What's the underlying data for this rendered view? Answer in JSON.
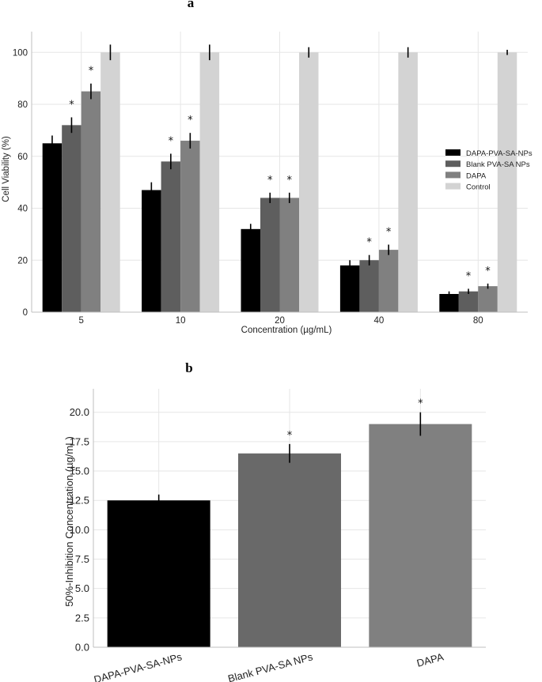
{
  "chart_data": [
    {
      "panel": "a",
      "type": "bar",
      "xlabel": "Concentration (µg/mL)",
      "ylabel": "Cell Viability (%)",
      "ylim": [
        0,
        108
      ],
      "yticks": [
        0,
        20,
        40,
        60,
        80,
        100
      ],
      "categories": [
        "5",
        "10",
        "20",
        "40",
        "80"
      ],
      "legend_position": "center-right",
      "series": [
        {
          "name": "DAPA-PVA-SA-NPs",
          "color": "#000000",
          "values": [
            65,
            47,
            32,
            18,
            7
          ],
          "errors": [
            3,
            3,
            2,
            2,
            1
          ],
          "significance": [
            "",
            "",
            "",
            "",
            ""
          ]
        },
        {
          "name": "Blank PVA-SA NPs",
          "color": "#5e5e5e",
          "values": [
            72,
            58,
            44,
            20,
            8
          ],
          "errors": [
            3,
            3,
            2,
            2,
            1
          ],
          "significance": [
            "*",
            "*",
            "*",
            "*",
            "*"
          ]
        },
        {
          "name": "DAPA",
          "color": "#808080",
          "values": [
            85,
            66,
            44,
            24,
            10
          ],
          "errors": [
            3,
            3,
            2,
            2,
            1
          ],
          "significance": [
            "*",
            "*",
            "*",
            "*",
            "*"
          ]
        },
        {
          "name": "Control",
          "color": "#d3d3d3",
          "values": [
            100,
            100,
            100,
            100,
            100
          ],
          "errors": [
            3,
            3,
            2,
            2,
            1
          ],
          "significance": [
            "",
            "",
            "",
            "",
            ""
          ]
        }
      ]
    },
    {
      "panel": "b",
      "type": "bar",
      "xlabel": "",
      "ylabel": "50%-Inhibition Concentration (µg/mL)",
      "ylim": [
        0,
        22
      ],
      "yticks": [
        "0.0",
        "2.5",
        "5.0",
        "7.5",
        "10.0",
        "12.5",
        "15.0",
        "17.5",
        "20.0"
      ],
      "categories": [
        "DAPA-PVA-SA-NPs",
        "Blank PVA-SA NPs",
        "DAPA"
      ],
      "colors": [
        "#000000",
        "#696969",
        "#808080"
      ],
      "values": [
        12.5,
        16.5,
        19.0
      ],
      "errors": [
        0.5,
        0.8,
        1.0
      ],
      "significance": [
        "",
        "*",
        "*"
      ]
    }
  ]
}
